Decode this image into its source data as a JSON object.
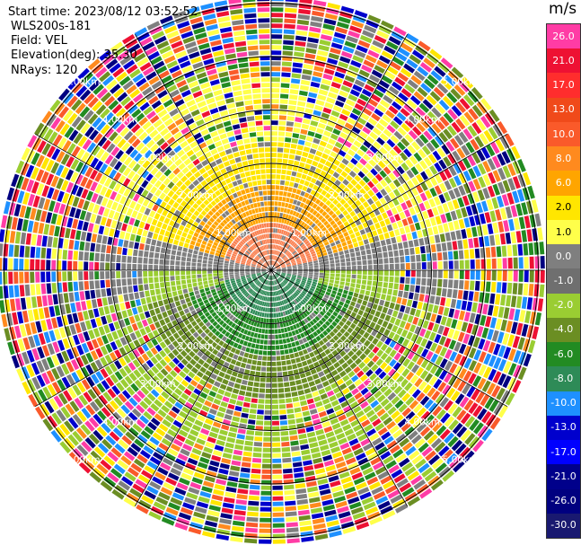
{
  "header": {
    "start_time": "Start time: 2023/08/12 03:52:52",
    "instrument": "WLS200s-181",
    "field": "Field: VEL",
    "elevation": "Elevation(deg): 35.30",
    "nrays": "NRays: 120"
  },
  "colorbar": {
    "unit": "m/s",
    "labels": [
      "26.0",
      "21.0",
      "17.0",
      "13.0",
      "10.0",
      "8.0",
      "6.0",
      "2.0",
      "1.0",
      "0.0",
      "-1.0",
      "-2.0",
      "-4.0",
      "-6.0",
      "-8.0",
      "-10.0",
      "-13.0",
      "-17.0",
      "-21.0",
      "-26.0",
      "-30.0"
    ],
    "colors": [
      "#ff3ca5",
      "#ee1133",
      "#ff2d2d",
      "#f04a1a",
      "#fa5a2a",
      "#ff8a1e",
      "#ffa500",
      "#ffe600",
      "#ffff4a",
      "#7f7f7f",
      "#6f6f6f",
      "#9acd32",
      "#6b8e23",
      "#228b22",
      "#2e8b57",
      "#1e90ff",
      "#0000cd",
      "#0000ff",
      "#00008b",
      "#000080",
      "#191970"
    ]
  },
  "chart_data": {
    "type": "ppi",
    "title": "",
    "field": "VEL",
    "units": "m/s",
    "nrays": 120,
    "elevation_deg": 35.3,
    "range_rings_km": [
      1,
      2,
      3,
      4,
      5
    ],
    "range_ring_labels": [
      "1.00km",
      "2.00km",
      "3.00km",
      "4.00km",
      "5.00km"
    ],
    "azimuth_spokes_deg": [
      0,
      30,
      60,
      90,
      120,
      150,
      180,
      210,
      240,
      270,
      300,
      330
    ],
    "max_range_km": 5.1,
    "clim": [
      -30,
      30
    ]
  }
}
